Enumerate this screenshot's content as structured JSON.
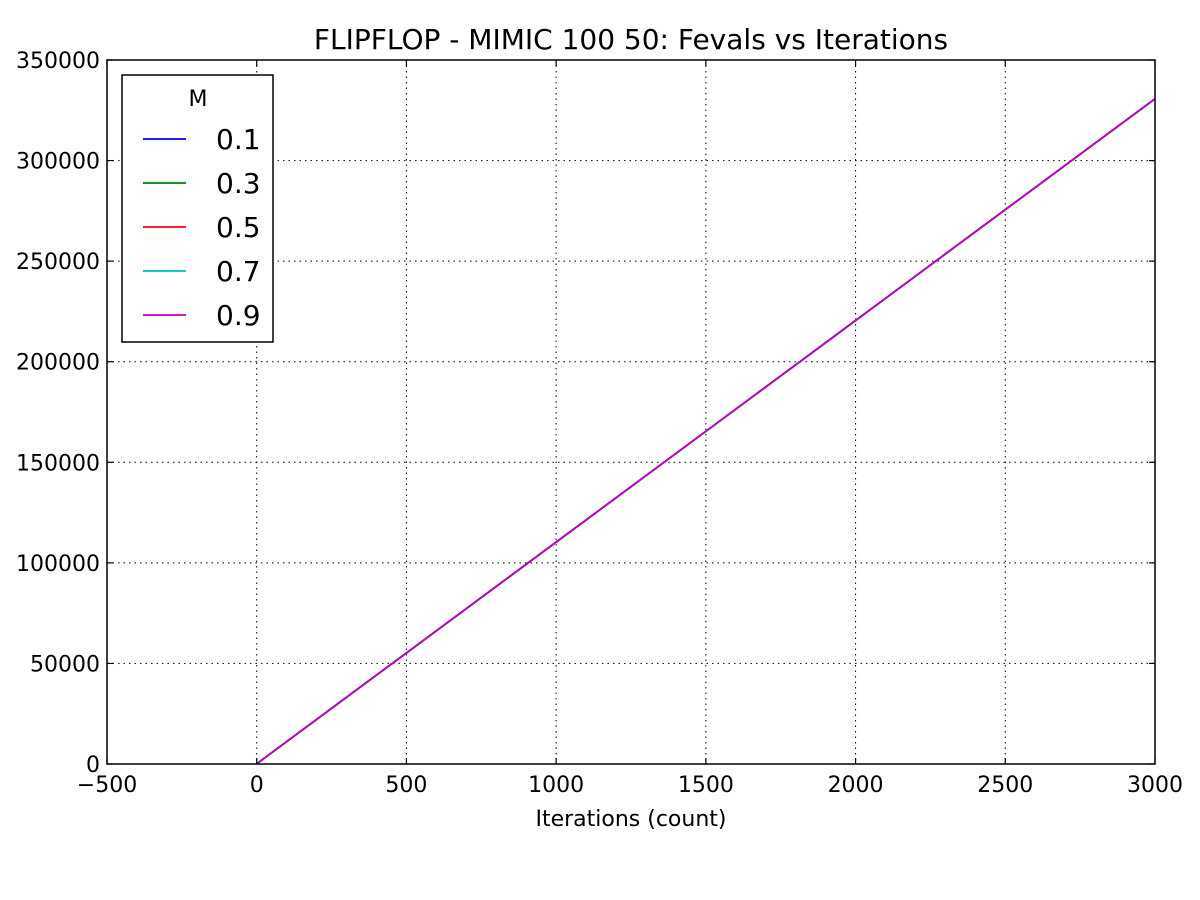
{
  "chart_data": {
    "type": "line",
    "title": "FLIPFLOP - MIMIC 100 50: Fevals vs Iterations",
    "xlabel": "Iterations (count)",
    "ylabel": "",
    "xlim": [
      -500,
      3000
    ],
    "ylim": [
      0,
      350000
    ],
    "xticks": [
      -500,
      0,
      500,
      1000,
      1500,
      2000,
      2500,
      3000
    ],
    "xtick_labels": [
      "−500",
      "0",
      "500",
      "1000",
      "1500",
      "2000",
      "2500",
      "3000"
    ],
    "yticks": [
      0,
      50000,
      100000,
      150000,
      200000,
      250000,
      300000,
      350000
    ],
    "ytick_labels": [
      "0",
      "50000",
      "100000",
      "150000",
      "200000",
      "250000",
      "300000",
      "350000"
    ],
    "grid": true,
    "legend": {
      "title": "M",
      "placement": "top-left"
    },
    "x": [
      0,
      500,
      1000,
      1500,
      2000,
      2500,
      3000
    ],
    "series": [
      {
        "name": "0.1",
        "color": "#0000ff",
        "values": [
          100,
          55200,
          110300,
          165400,
          220500,
          275600,
          330700
        ]
      },
      {
        "name": "0.3",
        "color": "#008000",
        "values": [
          100,
          55200,
          110300,
          165400,
          220500,
          275600,
          330700
        ]
      },
      {
        "name": "0.5",
        "color": "#ff0000",
        "values": [
          100,
          55200,
          110300,
          165400,
          220500,
          275600,
          330700
        ]
      },
      {
        "name": "0.7",
        "color": "#00bfbf",
        "values": [
          100,
          55200,
          110300,
          165400,
          220500,
          275600,
          330700
        ]
      },
      {
        "name": "0.9",
        "color": "#bf00bf",
        "values": [
          100,
          55200,
          110300,
          165400,
          220500,
          275600,
          330700
        ]
      }
    ]
  }
}
